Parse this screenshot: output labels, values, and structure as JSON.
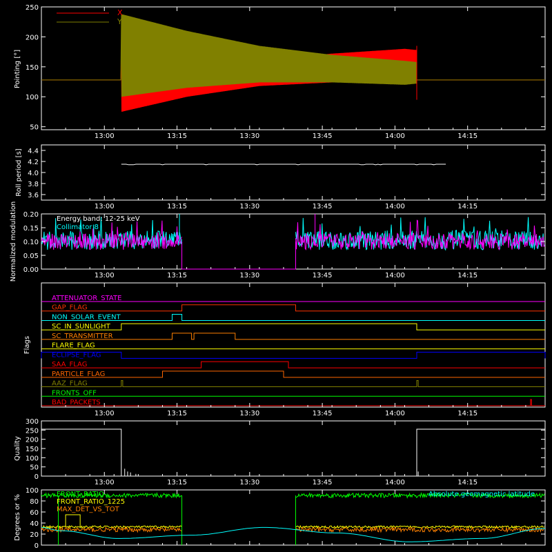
{
  "theme": {
    "background": "#000000",
    "axis": "#ffffff",
    "red": "#ff0000",
    "olive": "#808000",
    "cyan": "#00ffff",
    "magenta": "#ff00ff",
    "orange": "#ff8000",
    "yellow": "#ffff00",
    "blue": "#0000ff",
    "green": "#00ff00",
    "pink": "#ff3399"
  },
  "time_ticks": [
    "13:00",
    "13:15",
    "13:30",
    "13:45",
    "14:00",
    "14:15"
  ],
  "chart_data": [
    {
      "id": "pointing",
      "type": "line",
      "ylabel": "Pointing [°]",
      "ylim": [
        45,
        250
      ],
      "yticks": [
        50,
        100,
        150,
        200,
        250
      ],
      "xlim_minutes_from_1247": [
        0,
        104
      ],
      "legend": [
        {
          "name": "X",
          "color": "#ff0000"
        },
        {
          "name": "Y",
          "color": "#808000"
        }
      ],
      "series": [
        {
          "name": "X",
          "description": "flat at ~128 before 13:04 and after 14:04; oscillates between envelope bounds",
          "x_minutes": [
            0,
            16.5,
            16.5,
            30,
            45,
            60,
            75,
            77.5,
            77.5,
            104
          ],
          "min": [
            128,
            128,
            75,
            100,
            118,
            124,
            128,
            128,
            128,
            128
          ],
          "max": [
            128,
            128,
            160,
            150,
            160,
            172,
            180,
            178,
            128,
            128
          ]
        },
        {
          "name": "Y",
          "description": "flat at ~128 before 13:04 and after 14:04; oscillates between envelope bounds",
          "x_minutes": [
            0,
            16.5,
            16.5,
            30,
            45,
            60,
            75,
            77.5,
            77.5,
            104
          ],
          "min": [
            128,
            128,
            100,
            115,
            124,
            124,
            120,
            122,
            128,
            128
          ],
          "max": [
            128,
            128,
            238,
            210,
            185,
            170,
            160,
            158,
            128,
            128
          ]
        }
      ]
    },
    {
      "id": "roll",
      "type": "line",
      "ylabel": "Roll period [s]",
      "ylim": [
        3.5,
        4.5
      ],
      "yticks": [
        "3.6",
        "3.8",
        "4.0",
        "4.2",
        "4.4"
      ],
      "series": [
        {
          "name": "",
          "x_minutes": [
            16.5,
            83.5
          ],
          "values": [
            4.15,
            4.15
          ]
        }
      ]
    },
    {
      "id": "modulation",
      "type": "line",
      "ylabel": "Normalized modulation",
      "ylim": [
        0,
        0.2
      ],
      "yticks": [
        "0.00",
        "0.05",
        "0.10",
        "0.15",
        "0.20"
      ],
      "annotations": [
        "Energy band: 12-25 keV",
        "Collimator 8"
      ],
      "series": [
        {
          "name": "Collimator 8",
          "color": "#00ffff",
          "segments": [
            [
              0,
              29
            ],
            [
              52.5,
              104
            ]
          ],
          "level": 0.105
        },
        {
          "name": "",
          "color": "#ff00ff",
          "segments": [
            [
              0,
              29
            ],
            [
              52.5,
              104
            ]
          ],
          "level": 0.1,
          "zero_between": [
            29,
            52.5
          ],
          "spike_minutes": 56.5
        }
      ]
    },
    {
      "id": "flags",
      "type": "line",
      "ylabel": "Flags",
      "flags": [
        {
          "name": "ATTENUATOR_STATE",
          "color": "#ff00ff",
          "high": []
        },
        {
          "name": "GAP_FLAG",
          "color": "#ff3300",
          "high": [
            [
              29,
              52.5
            ]
          ]
        },
        {
          "name": "NON_SOLAR_EVENT",
          "color": "#00ffff",
          "high": [
            [
              27,
              29
            ]
          ]
        },
        {
          "name": "SC_IN_SUNLIGHT",
          "color": "#ffff00",
          "high": [
            [
              16.5,
              77.5
            ]
          ]
        },
        {
          "name": "SC_TRANSMITTER",
          "color": "#ff8000",
          "high": [
            [
              27,
              31
            ],
            [
              31.5,
              40
            ]
          ]
        },
        {
          "name": "FLARE_FLAG",
          "color": "#ffff00",
          "high": []
        },
        {
          "name": "ECLIPSE_FLAG",
          "color": "#0000ff",
          "high": [
            [
              0,
              16.5
            ],
            [
              77.5,
              104
            ]
          ]
        },
        {
          "name": "SAA_FLAG",
          "color": "#ff0000",
          "high": [
            [
              33,
              51
            ]
          ]
        },
        {
          "name": "PARTICLE_FLAG",
          "color": "#ff6600",
          "high": [
            [
              25,
              50
            ]
          ]
        },
        {
          "name": "AAZ_FLAG",
          "color": "#808000",
          "high": [
            [
              16.5,
              16.8
            ],
            [
              77.5,
              77.8
            ]
          ]
        },
        {
          "name": "FRONTS_OFF",
          "color": "#00ff00",
          "high": []
        },
        {
          "name": "BAD_PACKETS",
          "color": "#ff0000",
          "high": [
            [
              101,
              101.2
            ]
          ]
        }
      ]
    },
    {
      "id": "quality",
      "type": "line",
      "ylabel": "Quality",
      "ylim": [
        0,
        300
      ],
      "yticks": [
        "0",
        "50",
        "100",
        "150",
        "200",
        "250",
        "300"
      ],
      "series": [
        {
          "name": "",
          "x_minutes": [
            0,
            16.5,
            16.5,
            77.5,
            77.5,
            104
          ],
          "values": [
            255,
            255,
            0,
            0,
            255,
            255
          ]
        }
      ]
    },
    {
      "id": "percent",
      "type": "line",
      "ylabel": "Degrees or %",
      "ylim": [
        0,
        100
      ],
      "yticks": [
        "0",
        "20",
        "40",
        "60",
        "80",
        "100"
      ],
      "series": [
        {
          "name": "FRONT_RATIO",
          "color": "#00ff00",
          "segments": [
            [
              0,
              29
            ],
            [
              52.5,
              104
            ]
          ],
          "level": 90
        },
        {
          "name": "FRONT_RATIO_1225",
          "color": "#ffff00",
          "segments": [
            [
              0,
              29
            ],
            [
              52.5,
              104
            ]
          ],
          "level": 33
        },
        {
          "name": "MAX_DET_VS_TOT",
          "color": "#ff8000",
          "segments": [
            [
              0,
              29
            ],
            [
              52.5,
              104
            ]
          ],
          "level": 28
        },
        {
          "name": "Absolute geomagnetic latitude",
          "color": "#00ffff",
          "x_minutes": [
            0,
            4,
            16,
            31,
            46,
            61,
            76,
            91,
            104
          ],
          "values": [
            32,
            26,
            12,
            18,
            32,
            22,
            6,
            12,
            30
          ]
        }
      ]
    }
  ]
}
